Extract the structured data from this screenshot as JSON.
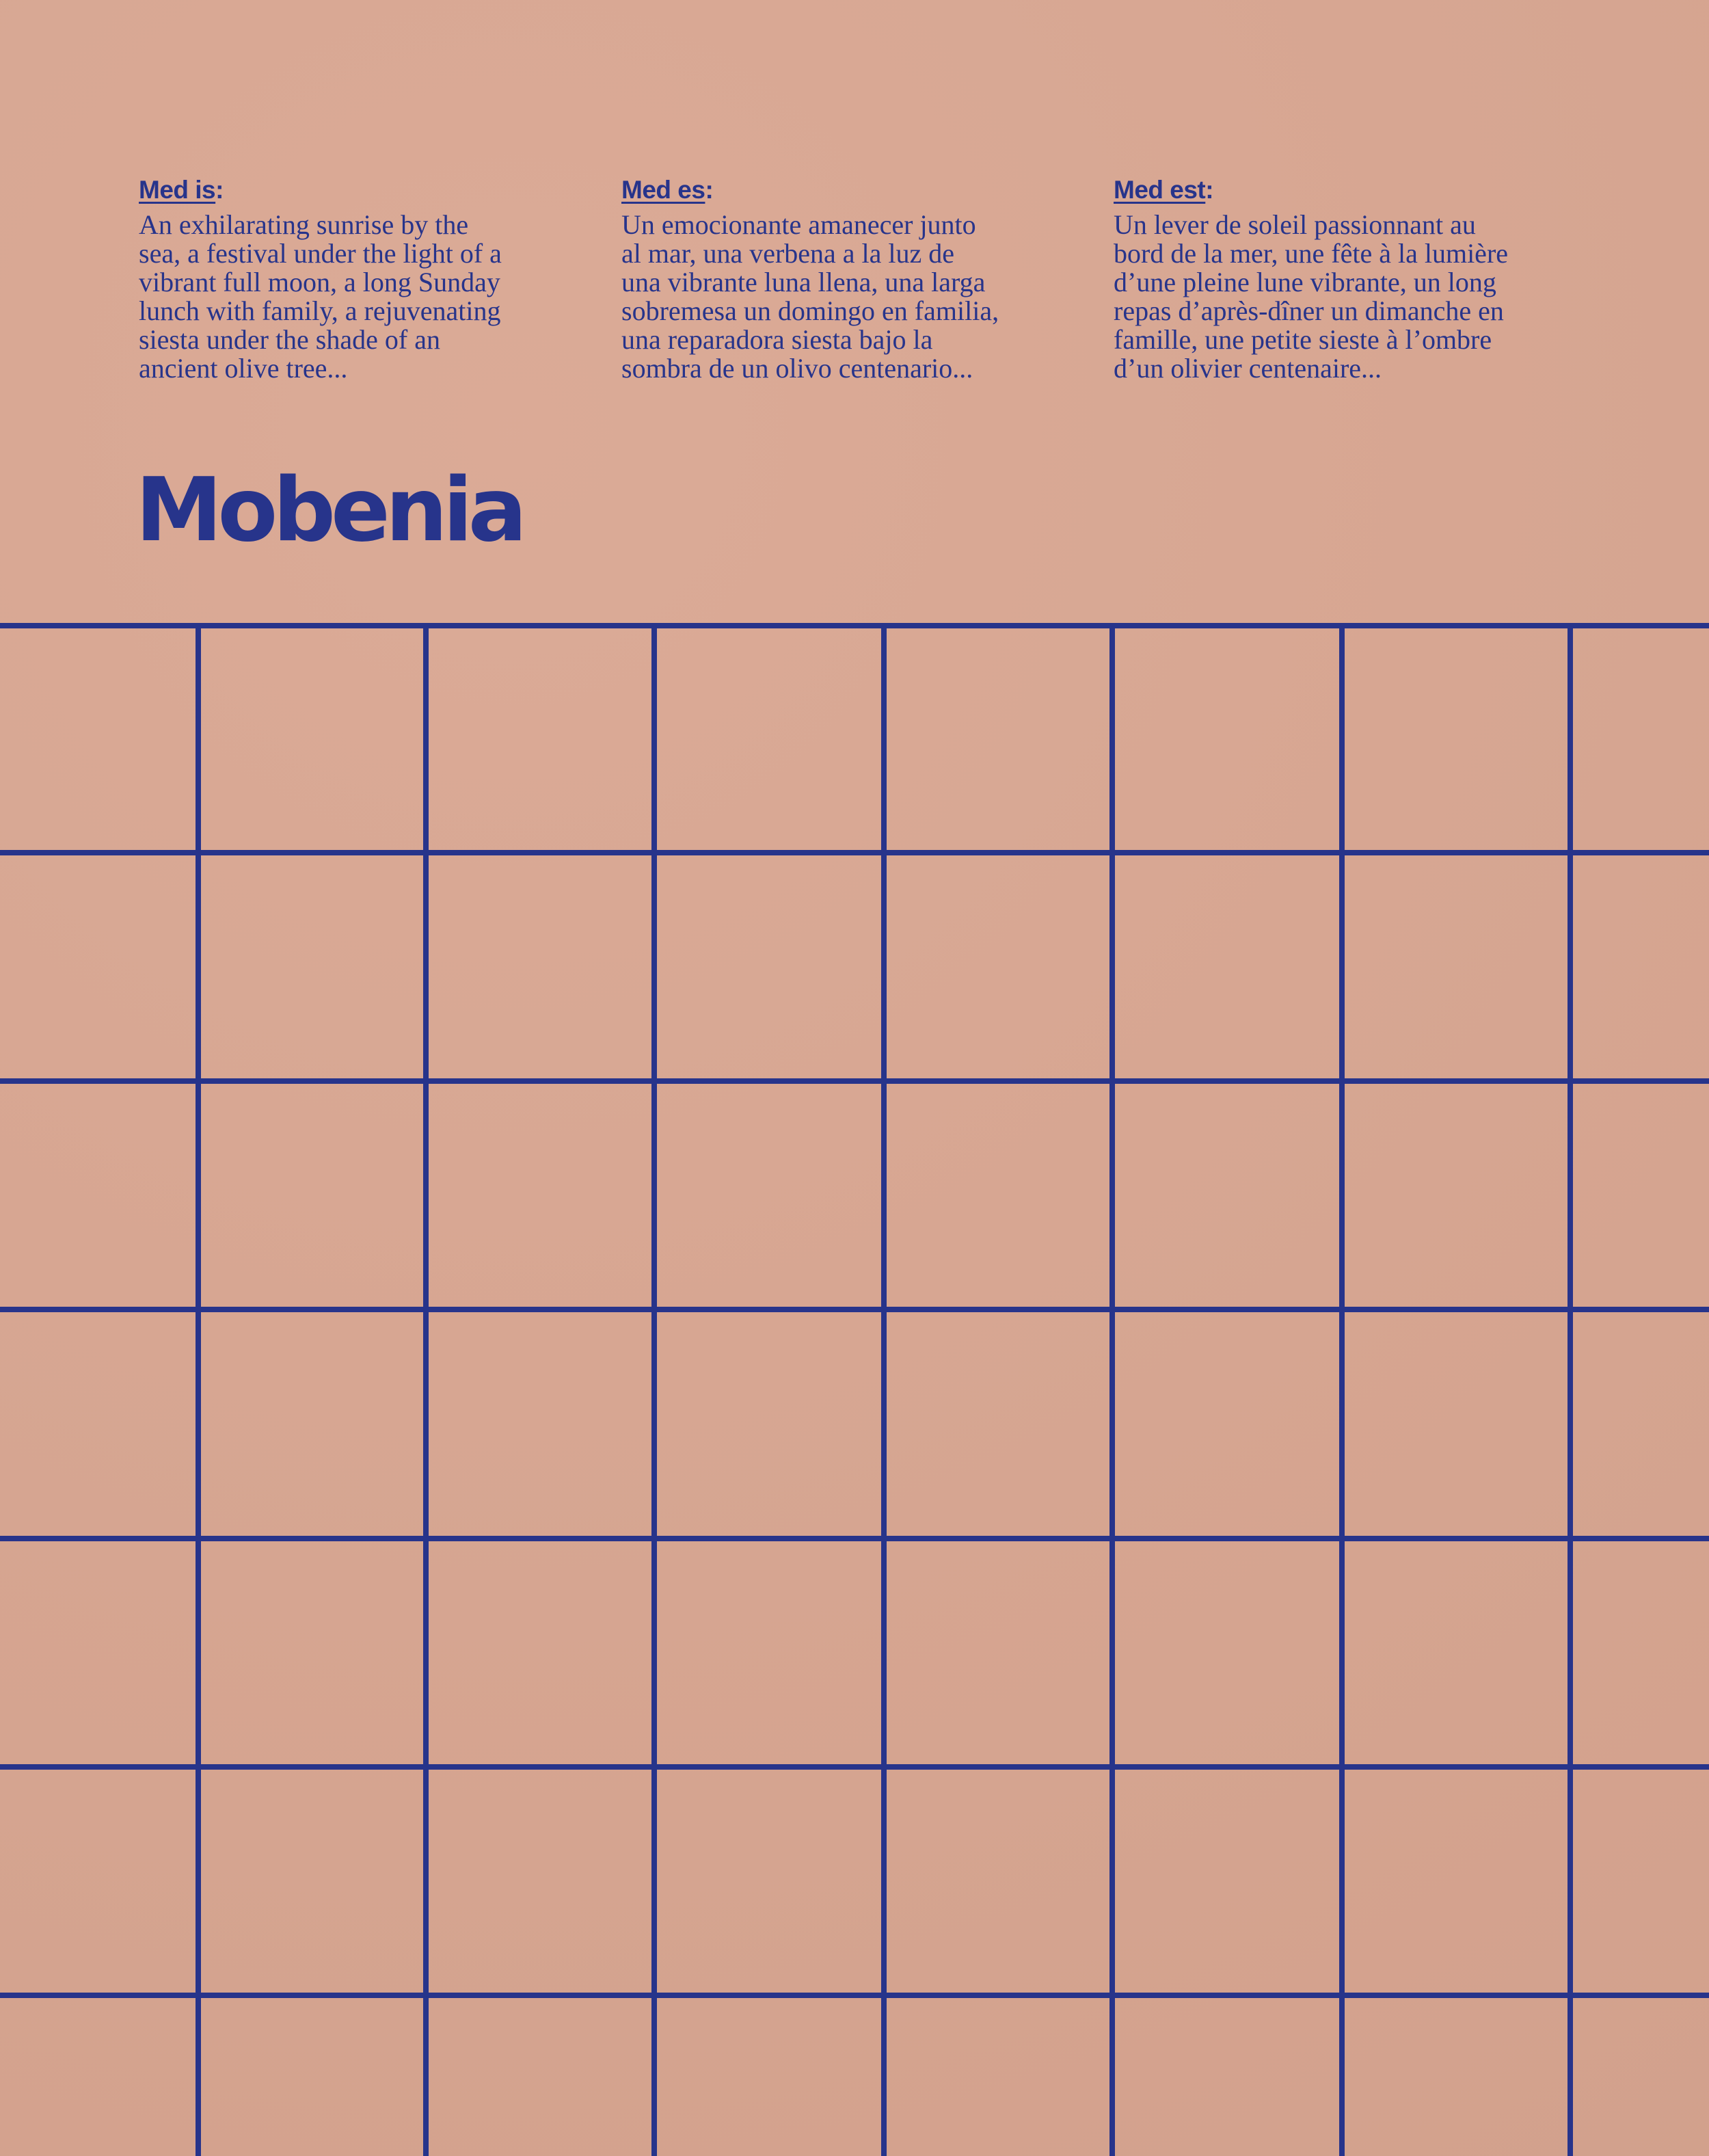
{
  "columns": [
    {
      "heading": "Med is",
      "colon": ":",
      "text": "An exhilarating sunrise by the\nsea, a festival under the light of a\nvibrant full moon, a long Sunday\nlunch with family, a rejuvenating\nsiesta under the shade of an\nancient olive tree..."
    },
    {
      "heading": "Med es",
      "colon": ":",
      "text": "Un emocionante amanecer junto\nal mar, una verbena a la luz de\nuna vibrante luna llena, una larga\nsobremesa un domingo en familia,\nuna reparadora siesta bajo la\nsombra de un olivo centenario..."
    },
    {
      "heading": "Med est",
      "colon": ":",
      "text": "Un lever de soleil passionnant au\nbord de la mer, une fête à la lumière\nd’une pleine lune vibrante, un long\nrepas d’après-dîner un dimanche en\nfamille, une petite sieste  à l’ombre\nd’un olivier centenaire..."
    }
  ],
  "brand": {
    "name": "Mobenia"
  },
  "colors": {
    "ink": "#27348b",
    "paper": "#d9a691"
  }
}
